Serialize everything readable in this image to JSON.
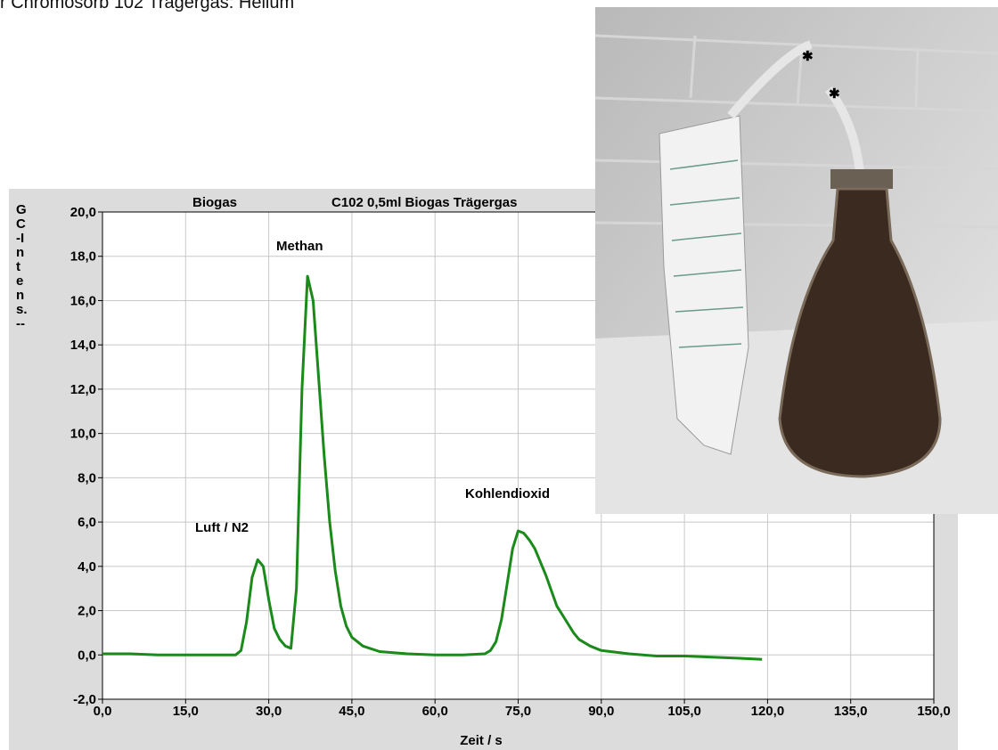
{
  "note": "r Chromosorb 102 Trägergas: Helium",
  "chart_data": {
    "type": "line",
    "title": "Biogas",
    "subtitle": "C102 0,5ml Biogas Trägergas",
    "y_label": "GC-Intens.--",
    "x_label": "Zeit / s",
    "annotations": [
      "Methan",
      "Luft / N2",
      "Kohlendioxid"
    ],
    "x": [
      0,
      5,
      10,
      15,
      20,
      24,
      25,
      26,
      27,
      28,
      29,
      30,
      31,
      32,
      33,
      34,
      35,
      36,
      37,
      38,
      39,
      40,
      41,
      42,
      43,
      44,
      45,
      47,
      50,
      55,
      60,
      65,
      69,
      70,
      71,
      72,
      73,
      74,
      75,
      76,
      77,
      78,
      79,
      80,
      81,
      82,
      83,
      84,
      85,
      86,
      88,
      90,
      95,
      100,
      105,
      110,
      115,
      119
    ],
    "series": [
      {
        "color": "#1a8a1a",
        "values": [
          0.05,
          0.05,
          0.0,
          0.0,
          0.0,
          0.0,
          0.2,
          1.5,
          3.5,
          4.3,
          4.0,
          2.5,
          1.2,
          0.7,
          0.4,
          0.3,
          3.0,
          12.0,
          17.1,
          16.0,
          12.5,
          9.0,
          6.0,
          3.8,
          2.2,
          1.3,
          0.8,
          0.4,
          0.15,
          0.05,
          0.0,
          0.0,
          0.05,
          0.2,
          0.6,
          1.6,
          3.2,
          4.8,
          5.6,
          5.5,
          5.2,
          4.8,
          4.2,
          3.6,
          2.9,
          2.2,
          1.8,
          1.4,
          1.0,
          0.7,
          0.4,
          0.2,
          0.05,
          -0.05,
          -0.05,
          -0.1,
          -0.15,
          -0.2
        ]
      }
    ],
    "xlim": [
      0,
      150
    ],
    "xticks": [
      {
        "value": 0,
        "label": "0,0"
      },
      {
        "value": 15,
        "label": "15,0"
      },
      {
        "value": 30,
        "label": "30,0"
      },
      {
        "value": 45,
        "label": "45,0"
      },
      {
        "value": 60,
        "label": "60,0"
      },
      {
        "value": 75,
        "label": "75,0"
      },
      {
        "value": 90,
        "label": "90,0"
      },
      {
        "value": 105,
        "label": "105,0"
      },
      {
        "value": 120,
        "label": "120,0"
      },
      {
        "value": 135,
        "label": "135,0"
      },
      {
        "value": 150,
        "label": "150,0"
      }
    ],
    "ylim": [
      -2,
      20
    ],
    "yticks": [
      {
        "value": -2,
        "label": "-2,0"
      },
      {
        "value": 0,
        "label": "0,0"
      },
      {
        "value": 2,
        "label": "2,0"
      },
      {
        "value": 4,
        "label": "4,0"
      },
      {
        "value": 6,
        "label": "6,0"
      },
      {
        "value": 8,
        "label": "8,0"
      },
      {
        "value": 10,
        "label": "10,0"
      },
      {
        "value": 12,
        "label": "12,0"
      },
      {
        "value": 14,
        "label": "14,0"
      },
      {
        "value": 16,
        "label": "16,0"
      },
      {
        "value": 18,
        "label": "18,0"
      },
      {
        "value": 20,
        "label": "20,0"
      }
    ],
    "grid": true
  }
}
